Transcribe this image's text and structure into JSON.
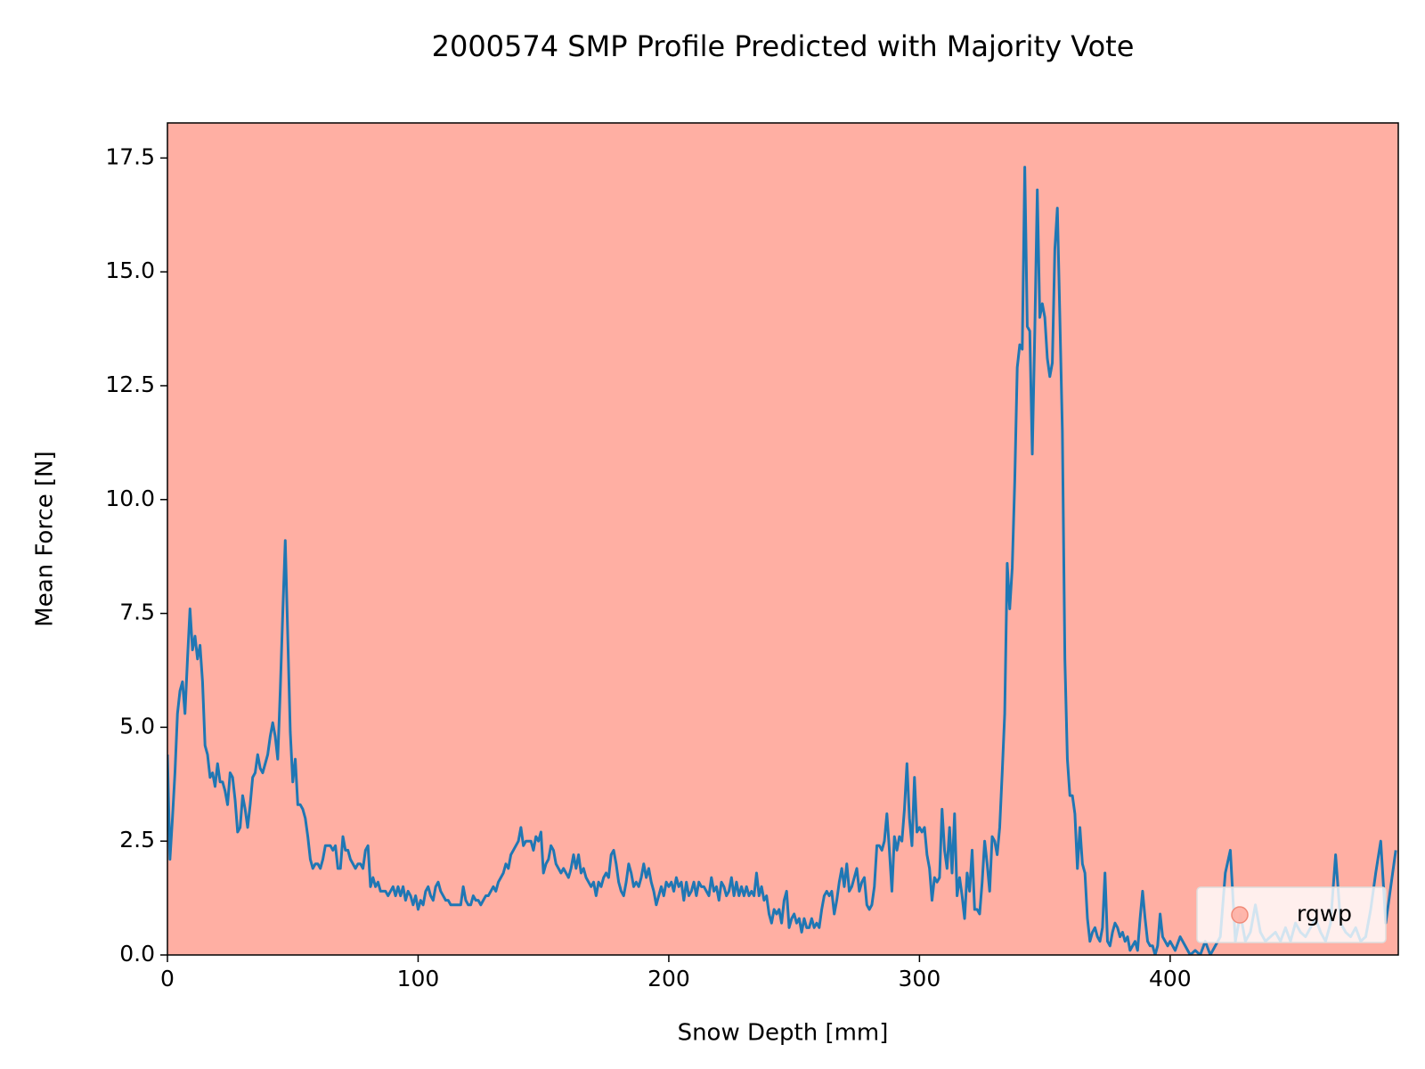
{
  "chart_data": {
    "type": "line",
    "title": "2000574 SMP Profile Predicted with Majority Vote",
    "x_label": "Snow Depth [mm]",
    "y_label": "Mean Force [N]",
    "xlim": [
      0,
      491
    ],
    "ylim": [
      0,
      18.27
    ],
    "xticks": [
      0,
      100,
      200,
      300,
      400
    ],
    "yticks": [
      {
        "value": 0,
        "label": "0.0"
      },
      2.5,
      {
        "value": 5,
        "label": "5.0"
      },
      7.5,
      {
        "value": 10,
        "label": "10.0"
      },
      12.5,
      {
        "value": 15,
        "label": "15.0"
      },
      17.5
    ],
    "regions": [
      {
        "name": "rgwp",
        "color": "#ffafa3"
      }
    ],
    "legend_loc": "lower right",
    "x": [
      0,
      1,
      2,
      3,
      4,
      5,
      6,
      7,
      8,
      9,
      10,
      11,
      12,
      13,
      14,
      15,
      16,
      17,
      18,
      19,
      20,
      21,
      22,
      23,
      24,
      25,
      26,
      27,
      28,
      29,
      30,
      31,
      32,
      33,
      34,
      35,
      36,
      37,
      38,
      39,
      40,
      41,
      42,
      43,
      44,
      45,
      46,
      47,
      48,
      49,
      50,
      51,
      52,
      53,
      54,
      55,
      56,
      57,
      58,
      59,
      60,
      61,
      62,
      63,
      64,
      65,
      66,
      67,
      68,
      69,
      70,
      71,
      72,
      73,
      74,
      75,
      76,
      77,
      78,
      79,
      80,
      81,
      82,
      83,
      84,
      85,
      86,
      87,
      88,
      89,
      90,
      91,
      92,
      93,
      94,
      95,
      96,
      97,
      98,
      99,
      100,
      101,
      102,
      103,
      104,
      105,
      106,
      107,
      108,
      109,
      110,
      111,
      112,
      113,
      114,
      115,
      116,
      117,
      118,
      119,
      120,
      121,
      122,
      123,
      124,
      125,
      126,
      127,
      128,
      129,
      130,
      131,
      132,
      133,
      134,
      135,
      136,
      137,
      138,
      139,
      140,
      141,
      142,
      143,
      144,
      145,
      146,
      147,
      148,
      149,
      150,
      151,
      152,
      153,
      154,
      155,
      156,
      157,
      158,
      159,
      160,
      161,
      162,
      163,
      164,
      165,
      166,
      167,
      168,
      169,
      170,
      171,
      172,
      173,
      174,
      175,
      176,
      177,
      178,
      179,
      180,
      181,
      182,
      183,
      184,
      185,
      186,
      187,
      188,
      189,
      190,
      191,
      192,
      193,
      194,
      195,
      196,
      197,
      198,
      199,
      200,
      201,
      202,
      203,
      204,
      205,
      206,
      207,
      208,
      209,
      210,
      211,
      212,
      213,
      214,
      215,
      216,
      217,
      218,
      219,
      220,
      221,
      222,
      223,
      224,
      225,
      226,
      227,
      228,
      229,
      230,
      231,
      232,
      233,
      234,
      235,
      236,
      237,
      238,
      239,
      240,
      241,
      242,
      243,
      244,
      245,
      246,
      247,
      248,
      249,
      250,
      251,
      252,
      253,
      254,
      255,
      256,
      257,
      258,
      259,
      260,
      261,
      262,
      263,
      264,
      265,
      266,
      267,
      268,
      269,
      270,
      271,
      272,
      273,
      274,
      275,
      276,
      277,
      278,
      279,
      280,
      281,
      282,
      283,
      284,
      285,
      286,
      287,
      288,
      289,
      290,
      291,
      292,
      293,
      294,
      295,
      296,
      297,
      298,
      299,
      300,
      301,
      302,
      303,
      304,
      305,
      306,
      307,
      308,
      309,
      310,
      311,
      312,
      313,
      314,
      315,
      316,
      317,
      318,
      319,
      320,
      321,
      322,
      323,
      324,
      325,
      326,
      327,
      328,
      329,
      330,
      331,
      332,
      333,
      334,
      335,
      336,
      337,
      338,
      339,
      340,
      341,
      342,
      343,
      344,
      345,
      346,
      347,
      348,
      349,
      350,
      351,
      352,
      353,
      354,
      355,
      356,
      357,
      358,
      359,
      360,
      361,
      362,
      363,
      364,
      365,
      366,
      367,
      368,
      369,
      370,
      371,
      372,
      373,
      374,
      375,
      376,
      377,
      378,
      379,
      380,
      381,
      382,
      383,
      384,
      385,
      386,
      387,
      388,
      389,
      390,
      391,
      392,
      393,
      394,
      395,
      396,
      397,
      398,
      399,
      400,
      402,
      404,
      406,
      408,
      410,
      412,
      414,
      416,
      418,
      420,
      422,
      424,
      426,
      428,
      430,
      432,
      434,
      436,
      438,
      440,
      442,
      444,
      446,
      448,
      450,
      452,
      454,
      456,
      458,
      460,
      462,
      464,
      466,
      468,
      470,
      472,
      474,
      476,
      478,
      480,
      482,
      484,
      486,
      488,
      490
    ],
    "series": [
      {
        "color": "#1f77b4",
        "values": [
          4.4,
          2.1,
          3.0,
          4.0,
          5.3,
          5.8,
          6.0,
          5.3,
          6.5,
          7.6,
          6.7,
          7.0,
          6.5,
          6.8,
          6.0,
          4.6,
          4.4,
          3.9,
          4.0,
          3.7,
          4.2,
          3.8,
          3.8,
          3.6,
          3.3,
          4.0,
          3.9,
          3.4,
          2.7,
          2.8,
          3.5,
          3.2,
          2.8,
          3.3,
          3.9,
          4.0,
          4.4,
          4.1,
          4.0,
          4.2,
          4.4,
          4.8,
          5.1,
          4.8,
          4.3,
          5.8,
          7.5,
          9.1,
          7.0,
          4.9,
          3.8,
          4.3,
          3.3,
          3.3,
          3.2,
          3.0,
          2.6,
          2.1,
          1.9,
          2.0,
          2.0,
          1.9,
          2.1,
          2.4,
          2.4,
          2.4,
          2.3,
          2.4,
          1.9,
          1.9,
          2.6,
          2.3,
          2.3,
          2.1,
          2.0,
          1.9,
          2.0,
          2.0,
          1.9,
          2.3,
          2.4,
          1.5,
          1.7,
          1.5,
          1.6,
          1.4,
          1.4,
          1.4,
          1.3,
          1.4,
          1.5,
          1.3,
          1.5,
          1.3,
          1.5,
          1.2,
          1.4,
          1.3,
          1.1,
          1.3,
          1.0,
          1.2,
          1.1,
          1.4,
          1.5,
          1.3,
          1.2,
          1.5,
          1.6,
          1.4,
          1.3,
          1.2,
          1.2,
          1.1,
          1.1,
          1.1,
          1.1,
          1.1,
          1.5,
          1.2,
          1.1,
          1.1,
          1.3,
          1.2,
          1.2,
          1.1,
          1.2,
          1.3,
          1.3,
          1.4,
          1.5,
          1.4,
          1.6,
          1.7,
          1.8,
          2.0,
          1.9,
          2.2,
          2.3,
          2.4,
          2.5,
          2.8,
          2.4,
          2.5,
          2.5,
          2.5,
          2.3,
          2.6,
          2.5,
          2.7,
          1.8,
          2.0,
          2.1,
          2.4,
          2.3,
          2.0,
          1.9,
          1.8,
          1.9,
          1.8,
          1.7,
          1.9,
          2.2,
          1.9,
          2.2,
          1.8,
          1.9,
          1.7,
          1.6,
          1.5,
          1.6,
          1.3,
          1.6,
          1.5,
          1.7,
          1.8,
          1.7,
          2.2,
          2.3,
          2.0,
          1.6,
          1.4,
          1.3,
          1.6,
          2.0,
          1.8,
          1.5,
          1.6,
          1.5,
          1.7,
          2.0,
          1.7,
          1.9,
          1.6,
          1.4,
          1.1,
          1.3,
          1.5,
          1.3,
          1.6,
          1.5,
          1.6,
          1.4,
          1.7,
          1.5,
          1.6,
          1.2,
          1.6,
          1.3,
          1.4,
          1.6,
          1.3,
          1.6,
          1.5,
          1.5,
          1.4,
          1.3,
          1.7,
          1.4,
          1.5,
          1.2,
          1.6,
          1.5,
          1.3,
          1.4,
          1.7,
          1.3,
          1.6,
          1.3,
          1.5,
          1.3,
          1.5,
          1.3,
          1.4,
          1.3,
          1.8,
          1.3,
          1.5,
          1.2,
          1.3,
          0.9,
          0.7,
          1.0,
          0.9,
          1.0,
          0.7,
          1.2,
          1.4,
          0.6,
          0.8,
          0.9,
          0.7,
          0.8,
          0.5,
          0.8,
          0.6,
          0.6,
          0.8,
          0.6,
          0.7,
          0.6,
          1.0,
          1.3,
          1.4,
          1.3,
          1.4,
          0.9,
          1.2,
          1.6,
          1.9,
          1.5,
          2.0,
          1.4,
          1.5,
          1.7,
          1.9,
          1.4,
          1.6,
          1.7,
          1.1,
          1.0,
          1.1,
          1.5,
          2.4,
          2.4,
          2.3,
          2.5,
          3.1,
          2.3,
          1.4,
          2.6,
          2.3,
          2.6,
          2.5,
          3.2,
          4.2,
          3.0,
          2.4,
          3.9,
          2.7,
          2.8,
          2.7,
          2.8,
          2.2,
          1.9,
          1.2,
          1.7,
          1.6,
          1.7,
          3.2,
          2.3,
          1.9,
          2.8,
          1.8,
          3.1,
          1.3,
          1.7,
          1.3,
          0.8,
          1.8,
          1.4,
          2.3,
          1.0,
          1.0,
          0.9,
          1.6,
          2.5,
          2.0,
          1.4,
          2.6,
          2.5,
          2.2,
          2.8,
          4.0,
          5.3,
          8.6,
          7.6,
          8.5,
          10.4,
          12.9,
          13.4,
          13.3,
          17.3,
          13.8,
          13.7,
          11.0,
          13.7,
          16.8,
          14.0,
          14.3,
          14.0,
          13.1,
          12.7,
          13.0,
          15.5,
          16.4,
          14.0,
          11.5,
          6.5,
          4.3,
          3.5,
          3.5,
          3.1,
          1.9,
          2.8,
          2.0,
          1.8,
          0.8,
          0.3,
          0.5,
          0.6,
          0.4,
          0.3,
          0.6,
          1.8,
          0.3,
          0.2,
          0.5,
          0.7,
          0.6,
          0.4,
          0.5,
          0.3,
          0.4,
          0.1,
          0.2,
          0.3,
          0.1,
          0.8,
          1.4,
          0.8,
          0.3,
          0.2,
          0.2,
          0.0,
          0.2,
          0.9,
          0.4,
          0.3,
          0.2,
          0.3,
          0.1,
          0.4,
          0.2,
          0.0,
          0.1,
          0.0,
          0.3,
          0.0,
          0.2,
          0.4,
          1.8,
          2.3,
          0.3,
          0.9,
          0.3,
          0.5,
          1.1,
          0.5,
          0.3,
          0.4,
          0.5,
          0.3,
          0.6,
          0.3,
          0.7,
          0.5,
          0.4,
          0.6,
          0.8,
          0.5,
          0.3,
          0.7,
          2.2,
          0.7,
          0.5,
          0.4,
          0.6,
          0.3,
          0.4,
          1.0,
          1.8,
          2.5,
          0.7,
          1.5,
          2.3
        ]
      }
    ]
  }
}
